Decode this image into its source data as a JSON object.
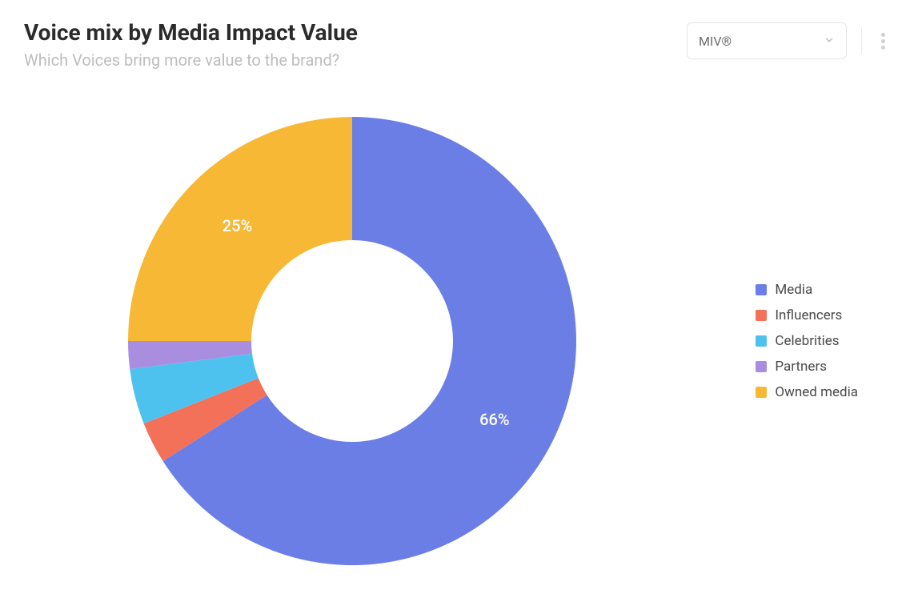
{
  "header": {
    "title": "Voice mix by Media Impact Value",
    "subtitle": "Which Voices bring more value to the brand?"
  },
  "controls": {
    "dropdown_label": "MIV®"
  },
  "chart": {
    "type": "donut",
    "inner_radius_ratio": 0.45,
    "background_color": "#ffffff",
    "slices": [
      {
        "key": "media",
        "label": "Media",
        "value": 66,
        "color": "#6b7ee6",
        "show_pct": true
      },
      {
        "key": "influencers",
        "label": "Influencers",
        "value": 3,
        "color": "#f37059",
        "show_pct": false
      },
      {
        "key": "celebrities",
        "label": "Celebrities",
        "value": 4,
        "color": "#4ec2ee",
        "show_pct": false
      },
      {
        "key": "partners",
        "label": "Partners",
        "value": 2,
        "color": "#a98ee0",
        "show_pct": false
      },
      {
        "key": "owned",
        "label": "Owned media",
        "value": 25,
        "color": "#f7b935",
        "show_pct": true
      }
    ],
    "label_text_color": "#ffffff",
    "label_fontsize": 20
  },
  "legend": {
    "text_color": "#4a4a4a",
    "fontsize": 17
  }
}
